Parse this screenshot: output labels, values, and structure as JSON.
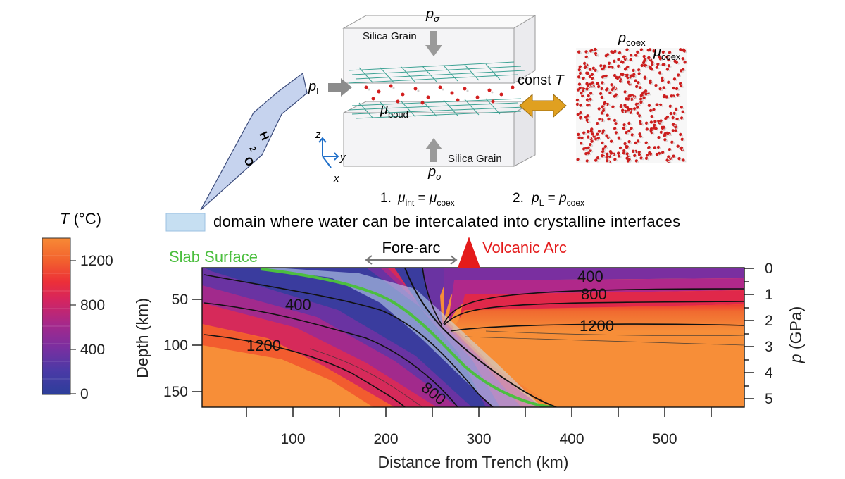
{
  "top_panel": {
    "p_sigma": "p",
    "p_sigma_sub": "σ",
    "silica_top": "Silica Grain",
    "silica_bottom": "Silica Grain",
    "p_L": "p",
    "p_L_sub": "L",
    "mu_boud": "μ",
    "mu_boud_sub": "boud",
    "const_T": "const",
    "const_T_var": "T",
    "p_coex": "p",
    "p_coex_sub": "coex",
    "mu_coex": "μ",
    "mu_coex_sub": "coex",
    "axis_z": "z",
    "axis_y": "y",
    "axis_x": "x",
    "vein_letters": [
      "H",
      "2",
      "O"
    ],
    "cond1_prefix": "1.",
    "cond1_mu": "μ",
    "cond1_sub1": "int",
    "cond1_eq": " = ",
    "cond1_mu2": "μ",
    "cond1_sub2": "coex",
    "cond2_prefix": "2.",
    "cond2_p": "p",
    "cond2_sub1": "L",
    "cond2_eq": " = ",
    "cond2_p2": "p",
    "cond2_sub2": "coex",
    "domain_text": "domain where water can be intercalated into crystalline interfaces"
  },
  "colorbar": {
    "title_var": "T",
    "title_unit": "(°C)",
    "ticks": [
      "1200",
      "800",
      "400",
      "0"
    ]
  },
  "section": {
    "slab_surface": "Slab Surface",
    "fore_arc": "Fore-arc",
    "volcanic_arc": "Volcanic Arc",
    "x_ticks": [
      "100",
      "200",
      "300",
      "400",
      "500"
    ],
    "x_label": "Distance from Trench (km)",
    "y_left_ticks": [
      "50",
      "100",
      "150"
    ],
    "y_left_label": "Depth (km)",
    "y_right_ticks": [
      "0",
      "1",
      "2",
      "3",
      "4",
      "5"
    ],
    "y_right_label_var": "p",
    "y_right_label_unit": "(GPa)",
    "contour_labels": [
      "400",
      "800",
      "1200",
      "400",
      "1200",
      "800"
    ]
  },
  "colors": {
    "slab_surface": "#4cbf3f",
    "volcanic_arc": "#e41b1b",
    "domain_fill": "#c6dff2",
    "arrow_gold": "#e0a020",
    "silica_grid": "#2a9a8a"
  }
}
